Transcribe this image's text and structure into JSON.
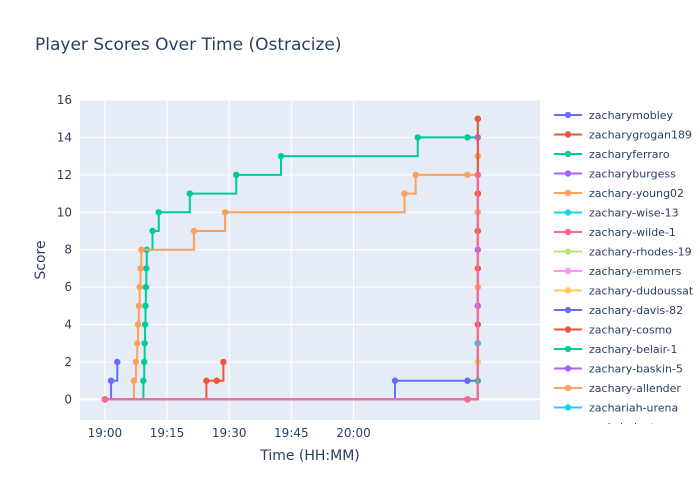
{
  "chart_data": {
    "type": "line",
    "line_shape": "step",
    "title": "Player Scores Over Time (Ostracize)",
    "xlabel": "Time (HH:MM)",
    "ylabel": "Score",
    "x_range_minutes": [
      -6,
      105
    ],
    "x_ticks": [
      {
        "minute": 0,
        "label": "19:00"
      },
      {
        "minute": 15,
        "label": "19:15"
      },
      {
        "minute": 30,
        "label": "19:30"
      },
      {
        "minute": 45,
        "label": "19:45"
      },
      {
        "minute": 60,
        "label": "20:00"
      }
    ],
    "ylim": [
      -1.1,
      16
    ],
    "y_ticks": [
      0,
      2,
      4,
      6,
      8,
      10,
      12,
      14,
      16
    ],
    "grid": true,
    "legend": "right",
    "plot_bg": "#e5ecf6",
    "series": [
      {
        "name": "zacharymobley",
        "color": "#636efa",
        "points": [
          [
            0,
            0
          ],
          [
            1.5,
            1
          ],
          [
            3.0,
            2
          ]
        ]
      },
      {
        "name": "zacharygrogan189",
        "color": "#ef553b",
        "points": [
          [
            0,
            0
          ],
          [
            24.5,
            1
          ],
          [
            27.0,
            1
          ],
          [
            28.6,
            2
          ]
        ]
      },
      {
        "name": "zacharyferraro",
        "color": "#00cc96",
        "points": [
          [
            0,
            0
          ],
          [
            9.3,
            1
          ],
          [
            9.5,
            2
          ],
          [
            9.6,
            3
          ],
          [
            9.7,
            4
          ],
          [
            9.8,
            5
          ],
          [
            9.9,
            6
          ],
          [
            10.0,
            7
          ],
          [
            10.1,
            8
          ],
          [
            11.5,
            9
          ],
          [
            13.0,
            10
          ],
          [
            20.5,
            11
          ],
          [
            31.7,
            12
          ],
          [
            42.5,
            13
          ],
          [
            75.5,
            14
          ],
          [
            87.5,
            14
          ],
          [
            90.0,
            15
          ]
        ]
      },
      {
        "name": "zacharyburgess",
        "color": "#ab63fa",
        "points": [
          [
            0,
            0
          ],
          [
            87.5,
            0
          ],
          [
            90.0,
            14
          ]
        ]
      },
      {
        "name": "zachary-young02",
        "color": "#ffa15a",
        "points": [
          [
            0,
            0
          ],
          [
            7.0,
            1
          ],
          [
            7.5,
            2
          ],
          [
            7.8,
            3
          ],
          [
            8.0,
            4
          ],
          [
            8.2,
            5
          ],
          [
            8.4,
            6
          ],
          [
            8.6,
            7
          ],
          [
            8.8,
            8
          ],
          [
            21.5,
            9
          ],
          [
            29.0,
            10
          ],
          [
            72.3,
            11
          ],
          [
            75.0,
            12
          ],
          [
            87.5,
            12
          ],
          [
            90.0,
            13
          ]
        ]
      },
      {
        "name": "zachary-wise-13",
        "color": "#19d3f3",
        "points": [
          [
            0,
            0
          ],
          [
            87.5,
            0
          ],
          [
            90.0,
            11
          ]
        ]
      },
      {
        "name": "zachary-wilde-1",
        "color": "#ff6692",
        "points": [
          [
            0,
            0
          ],
          [
            87.5,
            0
          ],
          [
            90.0,
            12
          ]
        ]
      },
      {
        "name": "zachary-rhodes-19",
        "color": "#b6e880",
        "points": [
          [
            0,
            0
          ],
          [
            87.5,
            0
          ],
          [
            90.0,
            1
          ]
        ]
      },
      {
        "name": "zachary-emmers",
        "color": "#ff97ff",
        "points": [
          [
            0,
            0
          ],
          [
            87.5,
            0
          ],
          [
            90.0,
            9
          ]
        ]
      },
      {
        "name": "zachary-dudoussat",
        "color": "#fecb52",
        "points": [
          [
            0,
            0
          ],
          [
            87.5,
            0
          ],
          [
            90.0,
            2
          ]
        ]
      },
      {
        "name": "zachary-davis-82",
        "color": "#636efa",
        "points": [
          [
            0,
            0
          ],
          [
            70.0,
            1
          ],
          [
            87.5,
            1
          ],
          [
            90.0,
            3
          ]
        ]
      },
      {
        "name": "zachary-cosmo",
        "color": "#ef553b",
        "points": [
          [
            0,
            0
          ],
          [
            87.5,
            0
          ],
          [
            90.0,
            4
          ],
          [
            90.0,
            7
          ],
          [
            90.0,
            9
          ],
          [
            90.0,
            11
          ],
          [
            90.0,
            15
          ]
        ]
      },
      {
        "name": "zachary-belair-1",
        "color": "#00cc96",
        "points": [
          [
            0,
            0
          ],
          [
            87.5,
            0
          ],
          [
            90.0,
            1
          ]
        ]
      },
      {
        "name": "zachary-baskin-5",
        "color": "#ab63fa",
        "points": [
          [
            0,
            0
          ],
          [
            87.5,
            0
          ],
          [
            90.0,
            5
          ],
          [
            90.0,
            8
          ]
        ]
      },
      {
        "name": "zachary-allender",
        "color": "#ffa15a",
        "points": [
          [
            0,
            0
          ],
          [
            87.5,
            0
          ],
          [
            90.0,
            6
          ],
          [
            90.0,
            10
          ]
        ]
      },
      {
        "name": "zachariah-urena",
        "color": "#19d3f3",
        "points": [
          [
            0,
            0
          ],
          [
            87.5,
            0
          ],
          [
            90.0,
            3
          ]
        ]
      },
      {
        "name": "zach_ludgate",
        "color": "#ff6692",
        "points": [
          [
            0,
            0
          ],
          [
            87.5,
            0
          ],
          [
            90.0,
            12
          ]
        ]
      }
    ]
  }
}
